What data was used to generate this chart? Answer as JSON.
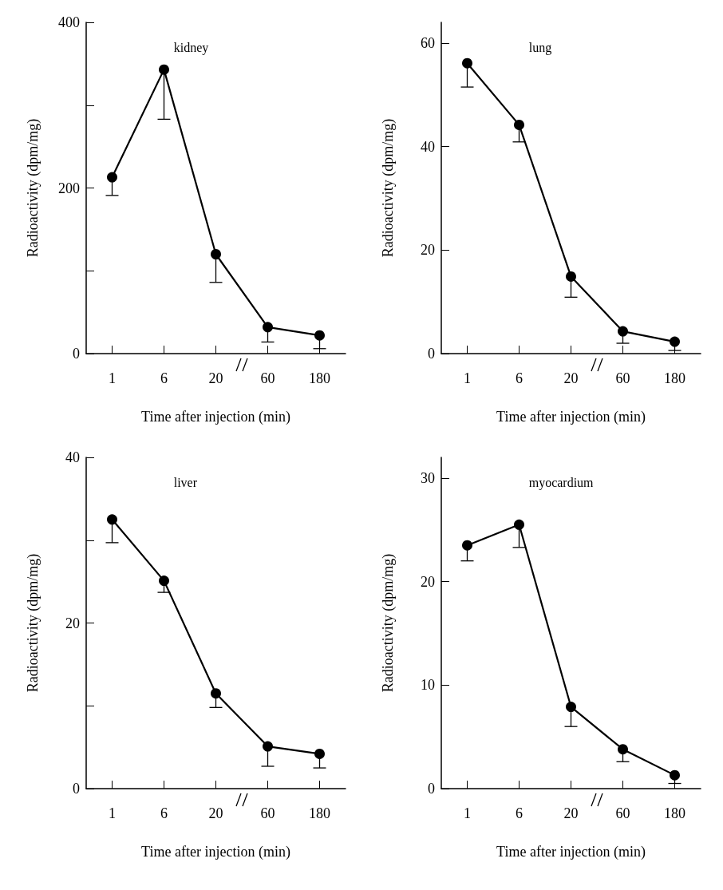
{
  "chart_data": [
    {
      "type": "line",
      "title": "kidney",
      "xlabel": "Time after injection (min)",
      "ylabel": "Radioactivity (dpm/mg)",
      "categories": [
        "1",
        "6",
        "20",
        "60",
        "180"
      ],
      "series": [
        {
          "color": "#000000",
          "values": [
            213,
            343,
            120,
            32,
            22
          ],
          "errors": [
            [
              191,
              213
            ],
            [
              283,
              343
            ],
            [
              86,
              120
            ],
            [
              14,
              32
            ],
            [
              6,
              22
            ]
          ]
        }
      ],
      "ylim": [
        0,
        400
      ],
      "yticks": [
        0,
        {
          "value": 100,
          "label": null
        },
        200,
        {
          "value": 300,
          "label": null
        },
        400
      ],
      "marker": "circle",
      "line_style": "solid",
      "grid": false
    },
    {
      "type": "line",
      "title": "lung",
      "xlabel": "Time after injection (min)",
      "ylabel": "Radioactivity (dpm/mg)",
      "categories": [
        "1",
        "6",
        "20",
        "60",
        "180"
      ],
      "series": [
        {
          "color": "#000000",
          "values": [
            56.1,
            44.2,
            14.9,
            4.3,
            2.3
          ],
          "errors": [
            [
              51.5,
              56.1
            ],
            [
              40.9,
              44.2
            ],
            [
              10.9,
              14.9
            ],
            [
              2.0,
              4.3
            ],
            [
              0.6,
              2.3
            ]
          ]
        }
      ],
      "ylim": [
        0,
        64
      ],
      "yticks": [
        0,
        20,
        40,
        60
      ],
      "marker": "circle",
      "line_style": "solid",
      "grid": false
    },
    {
      "type": "line",
      "title": "liver",
      "xlabel": "Time after injection (min)",
      "ylabel": "Radioactivity (dpm/mg)",
      "categories": [
        "1",
        "6",
        "20",
        "60",
        "180"
      ],
      "series": [
        {
          "color": "#000000",
          "values": [
            32.5,
            25.1,
            11.5,
            5.1,
            4.2
          ],
          "errors": [
            [
              29.7,
              32.5
            ],
            [
              23.7,
              25.1
            ],
            [
              9.8,
              11.5
            ],
            [
              2.7,
              5.1
            ],
            [
              2.5,
              4.2
            ]
          ]
        }
      ],
      "ylim": [
        0,
        40
      ],
      "yticks": [
        0,
        {
          "value": 10,
          "label": null
        },
        20,
        {
          "value": 30,
          "label": null
        },
        40
      ],
      "marker": "circle",
      "line_style": "solid",
      "grid": false
    },
    {
      "type": "line",
      "title": "myocardium",
      "xlabel": "Time after injection (min)",
      "ylabel": "Radioactivity (dpm/mg)",
      "categories": [
        "1",
        "6",
        "20",
        "60",
        "180"
      ],
      "series": [
        {
          "color": "#000000",
          "values": [
            23.5,
            25.5,
            7.9,
            3.8,
            1.3
          ],
          "errors": [
            [
              22.0,
              23.5
            ],
            [
              23.3,
              25.5
            ],
            [
              6.0,
              7.9
            ],
            [
              2.6,
              3.8
            ],
            [
              0.5,
              1.3
            ]
          ]
        }
      ],
      "ylim": [
        0,
        32
      ],
      "yticks": [
        0,
        10,
        20,
        30
      ],
      "marker": "circle",
      "line_style": "solid",
      "grid": false
    }
  ]
}
